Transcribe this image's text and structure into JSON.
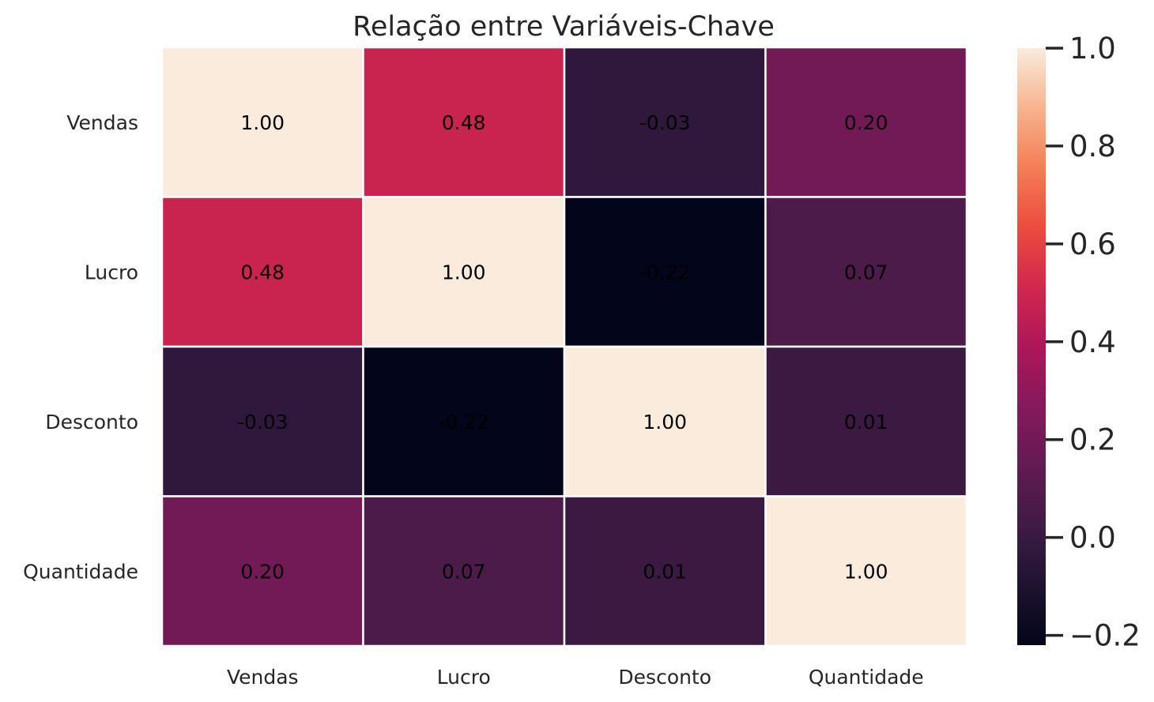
{
  "chart_data": {
    "type": "heatmap",
    "title": "Relação entre Variáveis-Chave",
    "xlabel": "",
    "ylabel": "",
    "x_categories": [
      "Vendas",
      "Lucro",
      "Desconto",
      "Quantidade"
    ],
    "y_categories": [
      "Vendas",
      "Lucro",
      "Desconto",
      "Quantidade"
    ],
    "values": [
      [
        1.0,
        0.48,
        -0.03,
        0.2
      ],
      [
        0.48,
        1.0,
        -0.22,
        0.07
      ],
      [
        -0.03,
        -0.22,
        1.0,
        0.01
      ],
      [
        0.2,
        0.07,
        0.01,
        1.0
      ]
    ],
    "cell_labels": [
      [
        "1.00",
        "0.48",
        "-0.03",
        "0.20"
      ],
      [
        "0.48",
        "1.00",
        "-0.22",
        "0.07"
      ],
      [
        "-0.03",
        "-0.22",
        "1.00",
        "0.01"
      ],
      [
        "0.20",
        "0.07",
        "0.01",
        "1.00"
      ]
    ],
    "colorbar": {
      "colormap": "rocket",
      "range": [
        -0.22,
        1.0
      ],
      "ticks": [
        -0.2,
        0.0,
        0.2,
        0.4,
        0.6,
        0.8,
        1.0
      ],
      "tick_labels": [
        "−0.2",
        "0.0",
        "0.2",
        "0.4",
        "0.6",
        "0.8",
        "1.0"
      ],
      "position": "right"
    },
    "cell_border_color": "#ffffff",
    "annotation_color": "#000000",
    "grid": false
  }
}
